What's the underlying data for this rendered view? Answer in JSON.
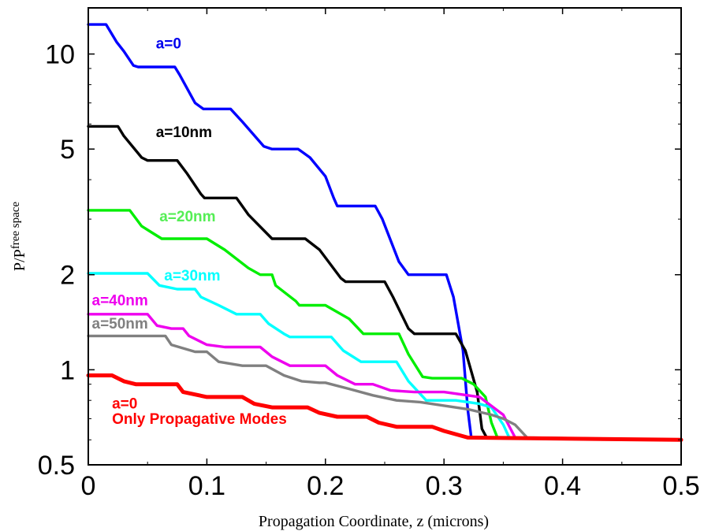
{
  "chart_data": {
    "type": "line",
    "title": "",
    "xlabel": "Propagation  Coordinate, z (microns)",
    "ylabel": {
      "main": "P/P",
      "sup": "free space"
    },
    "xlim": [
      0,
      0.5
    ],
    "ylim": [
      0.5,
      14
    ],
    "yscale": "log",
    "grid": false,
    "x_ticks": [
      "0",
      "0.1",
      "0.2",
      "0.3",
      "0.4",
      "0.5"
    ],
    "y_ticks": [
      "0.5",
      "1",
      "2",
      "5",
      "10"
    ],
    "series": [
      {
        "color": "#0000ff",
        "points": [
          [
            0,
            12.4
          ],
          [
            0.015,
            12.4
          ],
          [
            0.024,
            10.9
          ],
          [
            0.03,
            10.2
          ],
          [
            0.038,
            9.2
          ],
          [
            0.042,
            9.1
          ],
          [
            0.073,
            9.1
          ],
          [
            0.077,
            8.6
          ],
          [
            0.09,
            7.0
          ],
          [
            0.097,
            6.7
          ],
          [
            0.12,
            6.7
          ],
          [
            0.13,
            6.1
          ],
          [
            0.148,
            5.1
          ],
          [
            0.155,
            5.0
          ],
          [
            0.177,
            5.0
          ],
          [
            0.187,
            4.7
          ],
          [
            0.2,
            4.1
          ],
          [
            0.207,
            3.5
          ],
          [
            0.21,
            3.3
          ],
          [
            0.242,
            3.3
          ],
          [
            0.248,
            3.0
          ],
          [
            0.262,
            2.2
          ],
          [
            0.27,
            2.0
          ],
          [
            0.302,
            2.0
          ],
          [
            0.308,
            1.7
          ],
          [
            0.316,
            1.15
          ],
          [
            0.32,
            0.75
          ],
          [
            0.323,
            0.61
          ],
          [
            0.5,
            0.6
          ]
        ]
      },
      {
        "color": "#000000",
        "points": [
          [
            0,
            5.9
          ],
          [
            0.025,
            5.9
          ],
          [
            0.03,
            5.5
          ],
          [
            0.045,
            4.7
          ],
          [
            0.05,
            4.6
          ],
          [
            0.075,
            4.6
          ],
          [
            0.083,
            4.2
          ],
          [
            0.095,
            3.6
          ],
          [
            0.098,
            3.5
          ],
          [
            0.125,
            3.5
          ],
          [
            0.135,
            3.1
          ],
          [
            0.155,
            2.6
          ],
          [
            0.158,
            2.6
          ],
          [
            0.183,
            2.6
          ],
          [
            0.195,
            2.4
          ],
          [
            0.213,
            1.95
          ],
          [
            0.217,
            1.9
          ],
          [
            0.25,
            1.9
          ],
          [
            0.257,
            1.7
          ],
          [
            0.27,
            1.35
          ],
          [
            0.275,
            1.3
          ],
          [
            0.31,
            1.3
          ],
          [
            0.318,
            1.15
          ],
          [
            0.328,
            0.85
          ],
          [
            0.332,
            0.65
          ],
          [
            0.336,
            0.61
          ],
          [
            0.5,
            0.6
          ]
        ]
      },
      {
        "color": "#00ee00",
        "points": [
          [
            0,
            3.2
          ],
          [
            0.035,
            3.2
          ],
          [
            0.045,
            2.85
          ],
          [
            0.055,
            2.7
          ],
          [
            0.062,
            2.6
          ],
          [
            0.1,
            2.6
          ],
          [
            0.115,
            2.4
          ],
          [
            0.135,
            2.1
          ],
          [
            0.145,
            2.0
          ],
          [
            0.155,
            2.0
          ],
          [
            0.158,
            1.85
          ],
          [
            0.175,
            1.65
          ],
          [
            0.178,
            1.6
          ],
          [
            0.2,
            1.6
          ],
          [
            0.22,
            1.45
          ],
          [
            0.232,
            1.3
          ],
          [
            0.262,
            1.3
          ],
          [
            0.27,
            1.12
          ],
          [
            0.282,
            0.95
          ],
          [
            0.29,
            0.94
          ],
          [
            0.315,
            0.94
          ],
          [
            0.325,
            0.9
          ],
          [
            0.335,
            0.82
          ],
          [
            0.34,
            0.68
          ],
          [
            0.345,
            0.61
          ],
          [
            0.5,
            0.6
          ]
        ]
      },
      {
        "color": "#00ffff",
        "points": [
          [
            0,
            2.02
          ],
          [
            0.05,
            2.02
          ],
          [
            0.06,
            1.85
          ],
          [
            0.075,
            1.8
          ],
          [
            0.09,
            1.8
          ],
          [
            0.095,
            1.7
          ],
          [
            0.11,
            1.6
          ],
          [
            0.125,
            1.5
          ],
          [
            0.145,
            1.5
          ],
          [
            0.152,
            1.4
          ],
          [
            0.165,
            1.3
          ],
          [
            0.17,
            1.27
          ],
          [
            0.205,
            1.27
          ],
          [
            0.215,
            1.15
          ],
          [
            0.23,
            1.06
          ],
          [
            0.26,
            1.06
          ],
          [
            0.27,
            0.92
          ],
          [
            0.285,
            0.8
          ],
          [
            0.31,
            0.8
          ],
          [
            0.33,
            0.78
          ],
          [
            0.34,
            0.76
          ],
          [
            0.35,
            0.67
          ],
          [
            0.355,
            0.61
          ],
          [
            0.5,
            0.6
          ]
        ]
      },
      {
        "color": "#ee00ee",
        "points": [
          [
            0,
            1.5
          ],
          [
            0.05,
            1.5
          ],
          [
            0.058,
            1.38
          ],
          [
            0.07,
            1.35
          ],
          [
            0.08,
            1.35
          ],
          [
            0.085,
            1.28
          ],
          [
            0.1,
            1.2
          ],
          [
            0.115,
            1.18
          ],
          [
            0.145,
            1.18
          ],
          [
            0.155,
            1.1
          ],
          [
            0.17,
            1.03
          ],
          [
            0.2,
            1.03
          ],
          [
            0.21,
            0.96
          ],
          [
            0.225,
            0.9
          ],
          [
            0.24,
            0.9
          ],
          [
            0.255,
            0.86
          ],
          [
            0.275,
            0.85
          ],
          [
            0.3,
            0.85
          ],
          [
            0.33,
            0.82
          ],
          [
            0.35,
            0.72
          ],
          [
            0.36,
            0.61
          ],
          [
            0.5,
            0.6
          ]
        ]
      },
      {
        "color": "#808080",
        "points": [
          [
            0,
            1.28
          ],
          [
            0.065,
            1.28
          ],
          [
            0.07,
            1.2
          ],
          [
            0.09,
            1.14
          ],
          [
            0.1,
            1.14
          ],
          [
            0.11,
            1.06
          ],
          [
            0.13,
            1.03
          ],
          [
            0.15,
            1.03
          ],
          [
            0.165,
            0.96
          ],
          [
            0.18,
            0.92
          ],
          [
            0.195,
            0.91
          ],
          [
            0.2,
            0.91
          ],
          [
            0.22,
            0.87
          ],
          [
            0.24,
            0.83
          ],
          [
            0.26,
            0.8
          ],
          [
            0.28,
            0.79
          ],
          [
            0.32,
            0.75
          ],
          [
            0.34,
            0.72
          ],
          [
            0.35,
            0.7
          ],
          [
            0.36,
            0.67
          ],
          [
            0.37,
            0.61
          ],
          [
            0.5,
            0.6
          ]
        ]
      },
      {
        "color": "#ff0000",
        "width": 5,
        "points": [
          [
            0,
            0.96
          ],
          [
            0.02,
            0.96
          ],
          [
            0.03,
            0.92
          ],
          [
            0.04,
            0.9
          ],
          [
            0.075,
            0.9
          ],
          [
            0.08,
            0.85
          ],
          [
            0.1,
            0.82
          ],
          [
            0.13,
            0.82
          ],
          [
            0.14,
            0.78
          ],
          [
            0.155,
            0.76
          ],
          [
            0.185,
            0.76
          ],
          [
            0.195,
            0.73
          ],
          [
            0.21,
            0.71
          ],
          [
            0.235,
            0.71
          ],
          [
            0.245,
            0.68
          ],
          [
            0.26,
            0.66
          ],
          [
            0.29,
            0.66
          ],
          [
            0.3,
            0.64
          ],
          [
            0.32,
            0.61
          ],
          [
            0.5,
            0.6
          ]
        ]
      }
    ],
    "annotations": [
      {
        "text": "a=0",
        "color": "#0000ee",
        "x": 0.057,
        "y": 10.4
      },
      {
        "text": "a=10nm",
        "color": "#000000",
        "x": 0.057,
        "y": 5.45
      },
      {
        "text": "a=20nm",
        "color": "#55ee55",
        "x": 0.06,
        "y": 2.95
      },
      {
        "text": "a=30nm",
        "color": "#00ffff",
        "x": 0.064,
        "y": 1.92
      },
      {
        "text": "a=40nm",
        "color": "#ee00ee",
        "x": 0.003,
        "y": 1.6
      },
      {
        "text": "a=50nm",
        "color": "#808080",
        "x": 0.003,
        "y": 1.35
      },
      {
        "text": "a=0",
        "color": "#ff0000",
        "x": 0.02,
        "y": 0.755
      },
      {
        "text": "Only Propagative Modes",
        "color": "#ff0000",
        "x": 0.02,
        "y": 0.675
      }
    ]
  }
}
